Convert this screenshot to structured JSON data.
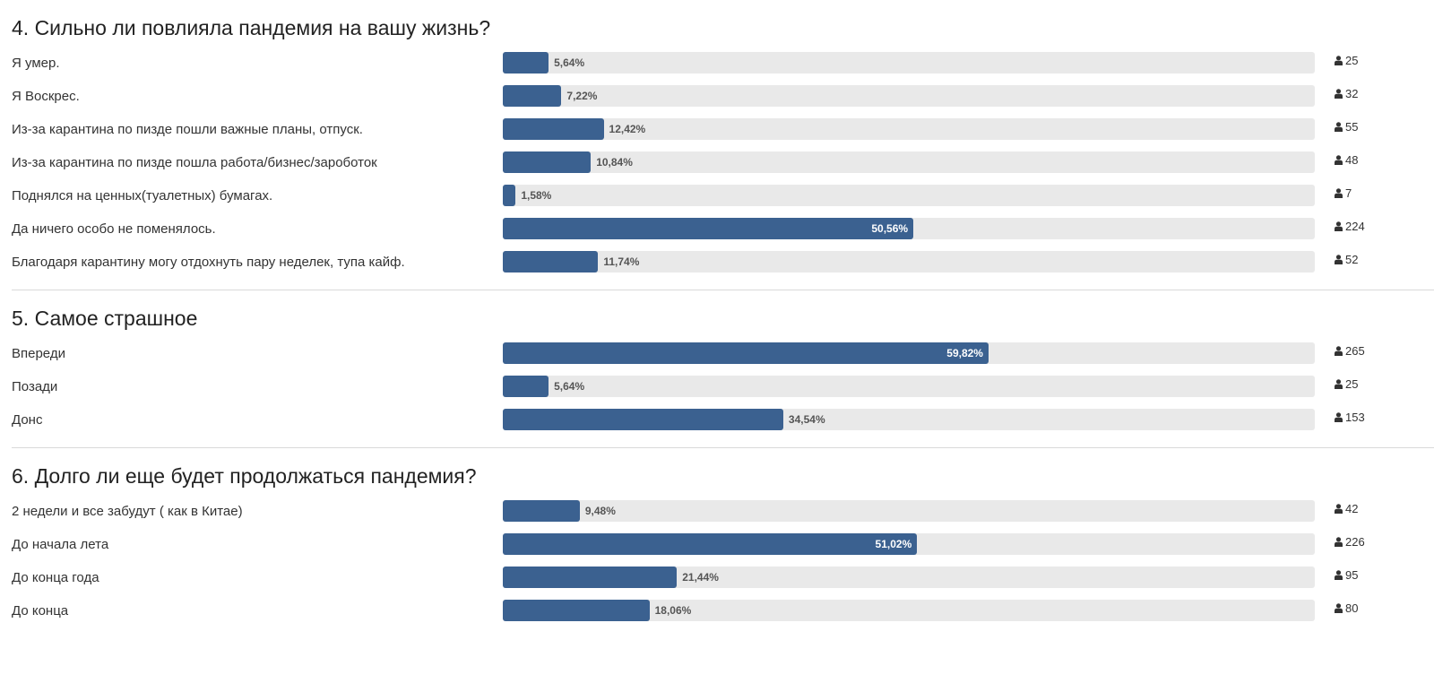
{
  "chart_data": [
    {
      "type": "bar",
      "orientation": "horizontal",
      "title": "4. Сильно ли повлияла пандемия на вашу жизнь?",
      "categories": [
        "Я умер.",
        "Я Воскрес.",
        "Из-за карантина по пизде пошли важные планы, отпуск.",
        "Из-за карантина по пизде пошла работа/бизнес/зароботок",
        "Поднялся на ценных(туалетных) бумагах.",
        "Да ничего особо не поменялось.",
        "Благодаря карантину могу отдохнуть пару неделек, тупа кайф."
      ],
      "values": [
        5.64,
        7.22,
        12.42,
        10.84,
        1.58,
        50.56,
        11.74
      ],
      "value_labels": [
        "5,64%",
        "7,22%",
        "12,42%",
        "10,84%",
        "1,58%",
        "50,56%",
        "11,74%"
      ],
      "votes": [
        "25",
        "32",
        "55",
        "48",
        "7",
        "224",
        "52"
      ],
      "xlim": [
        0,
        100
      ]
    },
    {
      "type": "bar",
      "orientation": "horizontal",
      "title": "5. Самое страшное",
      "categories": [
        "Впереди",
        "Позади",
        "Донс"
      ],
      "values": [
        59.82,
        5.64,
        34.54
      ],
      "value_labels": [
        "59,82%",
        "5,64%",
        "34,54%"
      ],
      "votes": [
        "265",
        "25",
        "153"
      ],
      "xlim": [
        0,
        100
      ]
    },
    {
      "type": "bar",
      "orientation": "horizontal",
      "title": "6. Долго ли еще будет продолжаться пандемия?",
      "categories": [
        "2 недели и все забудут ( как в Китае)",
        "До начала лета",
        "До конца года",
        "До конца"
      ],
      "values": [
        9.48,
        51.02,
        21.44,
        18.06
      ],
      "value_labels": [
        "9,48%",
        "51,02%",
        "21,44%",
        "18,06%"
      ],
      "votes": [
        "42",
        "226",
        "95",
        "80"
      ],
      "xlim": [
        0,
        100
      ]
    }
  ],
  "colors": {
    "bar": "#3b6190",
    "track": "#e9e9e9"
  },
  "icons": {
    "votes": "user-icon"
  }
}
